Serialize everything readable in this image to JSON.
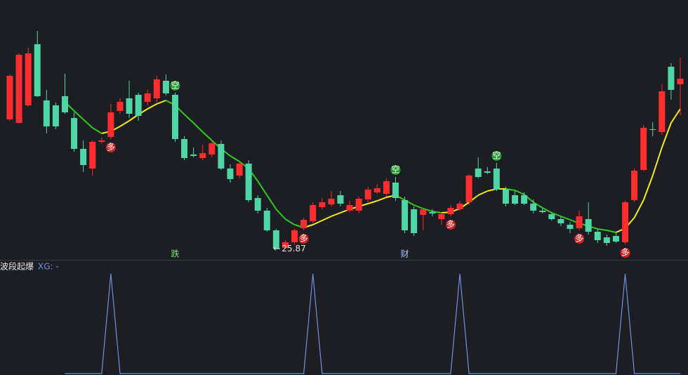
{
  "chart_data": [
    {
      "type": "candlestick",
      "open": [
        35.1,
        34.85,
        36.1,
        40.45,
        36.45,
        36.1,
        36.75,
        35.2,
        33.0,
        31.6,
        33.5,
        33.85,
        35.7,
        36.6,
        36.85,
        36.35,
        36.6,
        37.85,
        36.85,
        33.7,
        32.6,
        32.35,
        32.6,
        33.35,
        31.6,
        31.1,
        31.95,
        29.5,
        28.6,
        27.2,
        25.95,
        26.35,
        27.35,
        27.85,
        28.85,
        29.05,
        29.7,
        28.6,
        28.6,
        29.4,
        29.9,
        29.8,
        30.6,
        29.35,
        28.7,
        28.3,
        28.5,
        28.0,
        28.35,
        28.7,
        29.2,
        31.6,
        31.4,
        31.6,
        30.1,
        29.7,
        29.7,
        29.1,
        28.6,
        28.35,
        28.0,
        27.6,
        27.35,
        28.0,
        27.1,
        26.7,
        26.8,
        26.35,
        29.35,
        31.5,
        34.4,
        34.2,
        38.85,
        37.6
      ],
      "high": [
        38.3,
        39.8,
        40.2,
        41.4,
        37.2,
        36.3,
        38.35,
        35.6,
        33.6,
        33.6,
        33.8,
        36.2,
        36.6,
        37.85,
        37.0,
        37.2,
        38.2,
        38.3,
        37.0,
        33.9,
        33.1,
        33.3,
        33.6,
        33.6,
        31.9,
        32.1,
        32.2,
        29.7,
        28.8,
        27.3,
        26.5,
        27.3,
        28.1,
        29.2,
        29.5,
        30.0,
        30.0,
        29.3,
        29.6,
        30.3,
        30.5,
        30.9,
        31.0,
        29.6,
        28.9,
        28.8,
        28.7,
        28.5,
        29.0,
        29.3,
        31.2,
        32.4,
        31.7,
        32.0,
        30.3,
        30.0,
        29.9,
        29.4,
        28.8,
        28.5,
        28.2,
        27.8,
        28.6,
        29.2,
        27.3,
        26.9,
        27.0,
        29.3,
        31.6,
        34.7,
        34.9,
        37.6,
        39.1,
        39.5
      ],
      "low": [
        35.0,
        34.8,
        36.0,
        36.7,
        34.1,
        34.4,
        35.5,
        32.8,
        31.35,
        31.1,
        33.4,
        33.7,
        35.5,
        35.2,
        35.0,
        36.1,
        36.3,
        36.8,
        33.5,
        32.2,
        32.4,
        32.2,
        32.4,
        31.5,
        30.6,
        30.9,
        29.2,
        28.4,
        27.1,
        25.87,
        25.9,
        26.2,
        27.2,
        27.7,
        28.7,
        28.9,
        28.9,
        28.5,
        28.4,
        29.2,
        29.8,
        29.6,
        29.3,
        27.0,
        26.8,
        27.2,
        28.2,
        27.6,
        28.2,
        28.6,
        29.0,
        30.9,
        31.2,
        30.0,
        28.9,
        29.0,
        29.0,
        28.4,
        28.4,
        27.9,
        27.5,
        27.0,
        27.2,
        26.9,
        26.3,
        26.1,
        26.3,
        26.2,
        29.2,
        31.4,
        33.9,
        34.0,
        36.5,
        35.4
      ],
      "close": [
        38.2,
        39.7,
        39.8,
        36.75,
        34.6,
        34.6,
        35.6,
        33.0,
        31.85,
        33.5,
        33.6,
        35.6,
        36.35,
        35.5,
        35.35,
        36.95,
        37.95,
        36.95,
        33.7,
        32.35,
        32.5,
        32.7,
        33.4,
        31.6,
        30.85,
        31.95,
        29.35,
        28.6,
        27.2,
        25.9,
        26.35,
        27.2,
        27.95,
        29.0,
        29.2,
        29.45,
        29.1,
        29.0,
        29.45,
        30.1,
        30.2,
        30.7,
        29.5,
        27.2,
        27.0,
        28.7,
        28.4,
        28.35,
        28.8,
        29.1,
        31.1,
        31.0,
        31.3,
        30.1,
        29.1,
        29.1,
        29.1,
        28.6,
        28.5,
        28.0,
        27.7,
        27.3,
        28.2,
        27.1,
        26.5,
        26.3,
        26.4,
        29.2,
        31.45,
        34.5,
        34.35,
        37.1,
        37.2,
        38.0
      ],
      "up_color": "#ff2d2d",
      "down_color": "#4fd6a6",
      "line": {
        "rising_color": "#f2ee1e",
        "falling_color": "#2ccc1c",
        "values": [
          null,
          null,
          null,
          null,
          null,
          null,
          36.35,
          35.7,
          35.1,
          34.5,
          34.1,
          34.25,
          34.6,
          35.0,
          35.45,
          35.85,
          36.2,
          36.45,
          36.1,
          35.45,
          34.85,
          34.2,
          33.6,
          33.0,
          32.5,
          32.1,
          31.6,
          30.7,
          29.7,
          28.7,
          28.0,
          27.6,
          27.4,
          27.6,
          27.9,
          28.2,
          28.45,
          28.7,
          28.9,
          29.1,
          29.3,
          29.55,
          29.7,
          29.35,
          29.0,
          28.75,
          28.55,
          28.45,
          28.5,
          28.75,
          29.2,
          29.7,
          30.0,
          30.15,
          30.15,
          30.05,
          29.75,
          29.2,
          28.8,
          28.45,
          28.2,
          27.95,
          27.7,
          27.5,
          27.3,
          27.2,
          27.05,
          27.35,
          28.1,
          29.35,
          31.1,
          33.1,
          34.85,
          35.85
        ]
      },
      "buy_signals": [
        {
          "index": 11,
          "label": "多"
        },
        {
          "index": 32,
          "label": "多"
        },
        {
          "index": 48,
          "label": "多"
        },
        {
          "index": 62,
          "label": "多"
        },
        {
          "index": 67,
          "label": "多"
        }
      ],
      "sell_signals": [
        {
          "index": 18,
          "label": "空"
        },
        {
          "index": 42,
          "label": "空"
        },
        {
          "index": 53,
          "label": "空"
        }
      ],
      "bottom_labels": [
        {
          "index": 18,
          "text": "跌"
        },
        {
          "index": 43,
          "text": "财"
        }
      ],
      "ylim": [
        25.1,
        43.6
      ]
    },
    {
      "type": "line",
      "title": "波段起爆",
      "series": [
        {
          "name": "XG: -",
          "color": "#6d8fe6",
          "values": [
            null,
            null,
            null,
            null,
            null,
            null,
            0,
            0,
            0,
            0,
            0,
            1,
            0,
            0,
            0,
            0,
            0,
            0,
            0,
            0,
            0,
            0,
            0,
            0,
            0,
            0,
            0,
            0,
            0,
            0,
            0,
            0,
            0,
            1,
            0,
            0,
            0,
            0,
            0,
            0,
            0,
            0,
            0,
            0,
            0,
            0,
            0,
            0,
            0,
            1,
            0,
            0,
            0,
            0,
            0,
            0,
            0,
            0,
            0,
            0,
            0,
            0,
            0,
            0,
            0,
            0,
            0,
            1,
            0,
            0,
            0,
            0,
            0,
            0
          ]
        }
      ],
      "ylim": [
        0,
        1
      ]
    }
  ]
}
